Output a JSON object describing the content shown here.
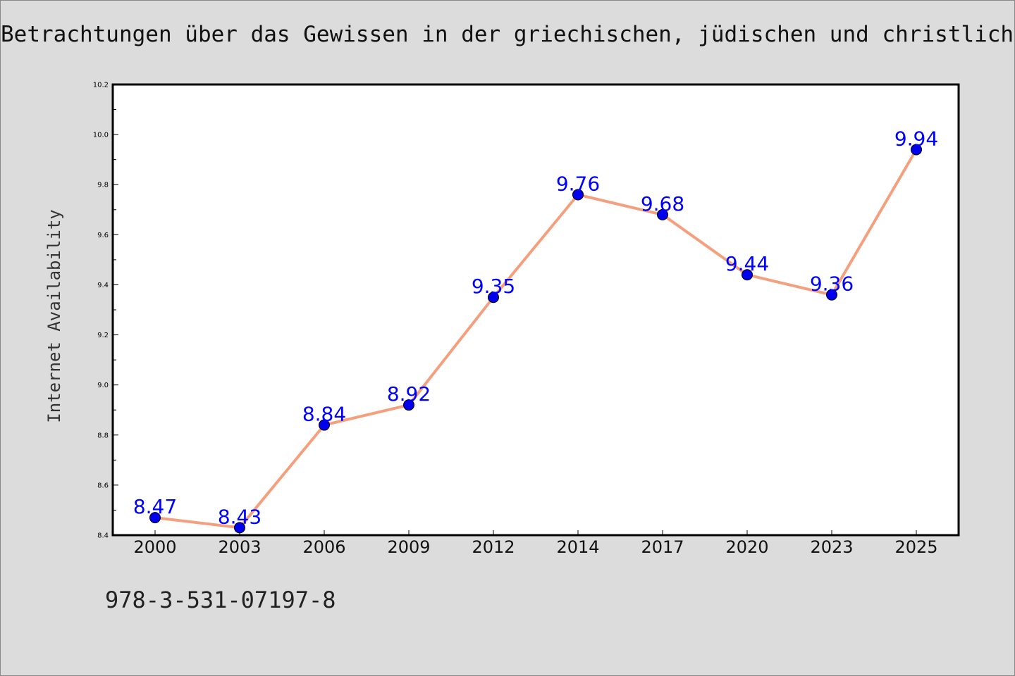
{
  "chart_data": {
    "type": "line",
    "title": "Betrachtungen über das Gewissen in der griechischen, jüdischen und christlichen",
    "xlabel": "",
    "ylabel": "Internet Availability",
    "categories": [
      "2000",
      "2003",
      "2006",
      "2009",
      "2012",
      "2014",
      "2017",
      "2020",
      "2023",
      "2025"
    ],
    "series": [
      {
        "values": [
          8.47,
          8.43,
          8.84,
          8.92,
          9.35,
          9.76,
          9.68,
          9.44,
          9.36,
          9.94
        ],
        "data_labels": [
          "8.47",
          "8.43",
          "8.84",
          "8.92",
          "9.35",
          "9.76",
          "9.68",
          "9.44",
          "9.36",
          "9.94"
        ]
      }
    ],
    "ylim": [
      8.4,
      10.2
    ],
    "yticks": [
      "8.4",
      "8.6",
      "8.8",
      "9.0",
      "9.2",
      "9.4",
      "9.6",
      "9.8",
      "10.0",
      "10.2"
    ],
    "grid": false,
    "colors": {
      "line": "#f4a07e",
      "marker": "#0000ee",
      "data_label": "#0000ff",
      "plot_background": "#ffffff",
      "figure_background": "#dcdcdc"
    }
  },
  "footer": {
    "isbn": "978-3-531-07197-8"
  }
}
